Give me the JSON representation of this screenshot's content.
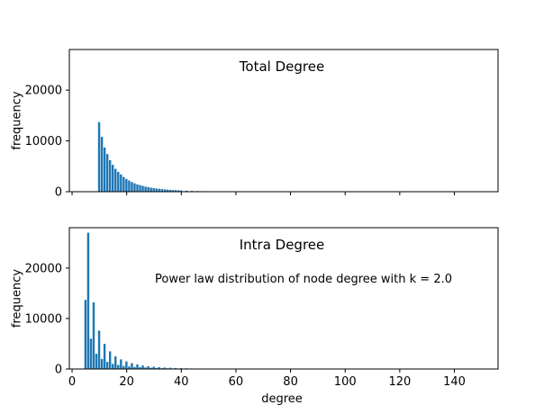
{
  "chart_data": [
    {
      "type": "bar",
      "title": "Total Degree",
      "xlabel": "",
      "ylabel": "frequency",
      "xlim": [
        -1,
        156
      ],
      "ylim": [
        0,
        28000
      ],
      "xticks": [
        0,
        20,
        40,
        60,
        80,
        100,
        120,
        140
      ],
      "yticks": [
        0,
        10000,
        20000
      ],
      "ytick_labels": [
        "0",
        "10000",
        "20000"
      ],
      "show_xtick_labels": false,
      "annotation": "",
      "color": "#1f77b4",
      "x": [
        10,
        11,
        12,
        13,
        14,
        15,
        16,
        17,
        18,
        19,
        20,
        21,
        22,
        23,
        24,
        25,
        26,
        27,
        28,
        29,
        30,
        31,
        32,
        33,
        34,
        35,
        36,
        37,
        38,
        39,
        40,
        42,
        44,
        46,
        48,
        50,
        52,
        54,
        56,
        58,
        60
      ],
      "values": [
        13700,
        10800,
        8700,
        7400,
        6200,
        5300,
        4500,
        3900,
        3400,
        2900,
        2500,
        2200,
        1900,
        1650,
        1450,
        1300,
        1150,
        1000,
        900,
        800,
        720,
        640,
        570,
        510,
        460,
        410,
        370,
        330,
        300,
        270,
        240,
        200,
        160,
        130,
        110,
        90,
        75,
        60,
        50,
        40,
        30
      ]
    },
    {
      "type": "bar",
      "title": "Intra Degree",
      "xlabel": "degree",
      "ylabel": "frequency",
      "xlim": [
        -1,
        156
      ],
      "ylim": [
        0,
        28000
      ],
      "xticks": [
        0,
        20,
        40,
        60,
        80,
        100,
        120,
        140
      ],
      "xtick_labels": [
        "0",
        "20",
        "40",
        "60",
        "80",
        "100",
        "120",
        "140"
      ],
      "yticks": [
        0,
        10000,
        20000
      ],
      "ytick_labels": [
        "0",
        "10000",
        "20000"
      ],
      "show_xtick_labels": true,
      "annotation": "Power law distribution of node degree with k = 2.0",
      "color": "#1f77b4",
      "x": [
        5,
        6,
        7,
        8,
        9,
        10,
        11,
        12,
        13,
        14,
        15,
        16,
        17,
        18,
        19,
        20,
        21,
        22,
        23,
        24,
        25,
        26,
        27,
        28,
        29,
        30,
        31,
        32,
        33,
        34,
        35,
        36,
        37,
        38,
        39,
        40,
        42,
        44,
        46,
        48,
        50
      ],
      "values": [
        13700,
        27000,
        6000,
        13200,
        3000,
        7600,
        2000,
        5000,
        1400,
        3500,
        1000,
        2500,
        800,
        1900,
        600,
        1500,
        500,
        1150,
        400,
        900,
        350,
        700,
        300,
        550,
        250,
        450,
        200,
        350,
        170,
        300,
        140,
        250,
        120,
        200,
        100,
        160,
        130,
        100,
        80,
        60,
        40
      ]
    }
  ]
}
